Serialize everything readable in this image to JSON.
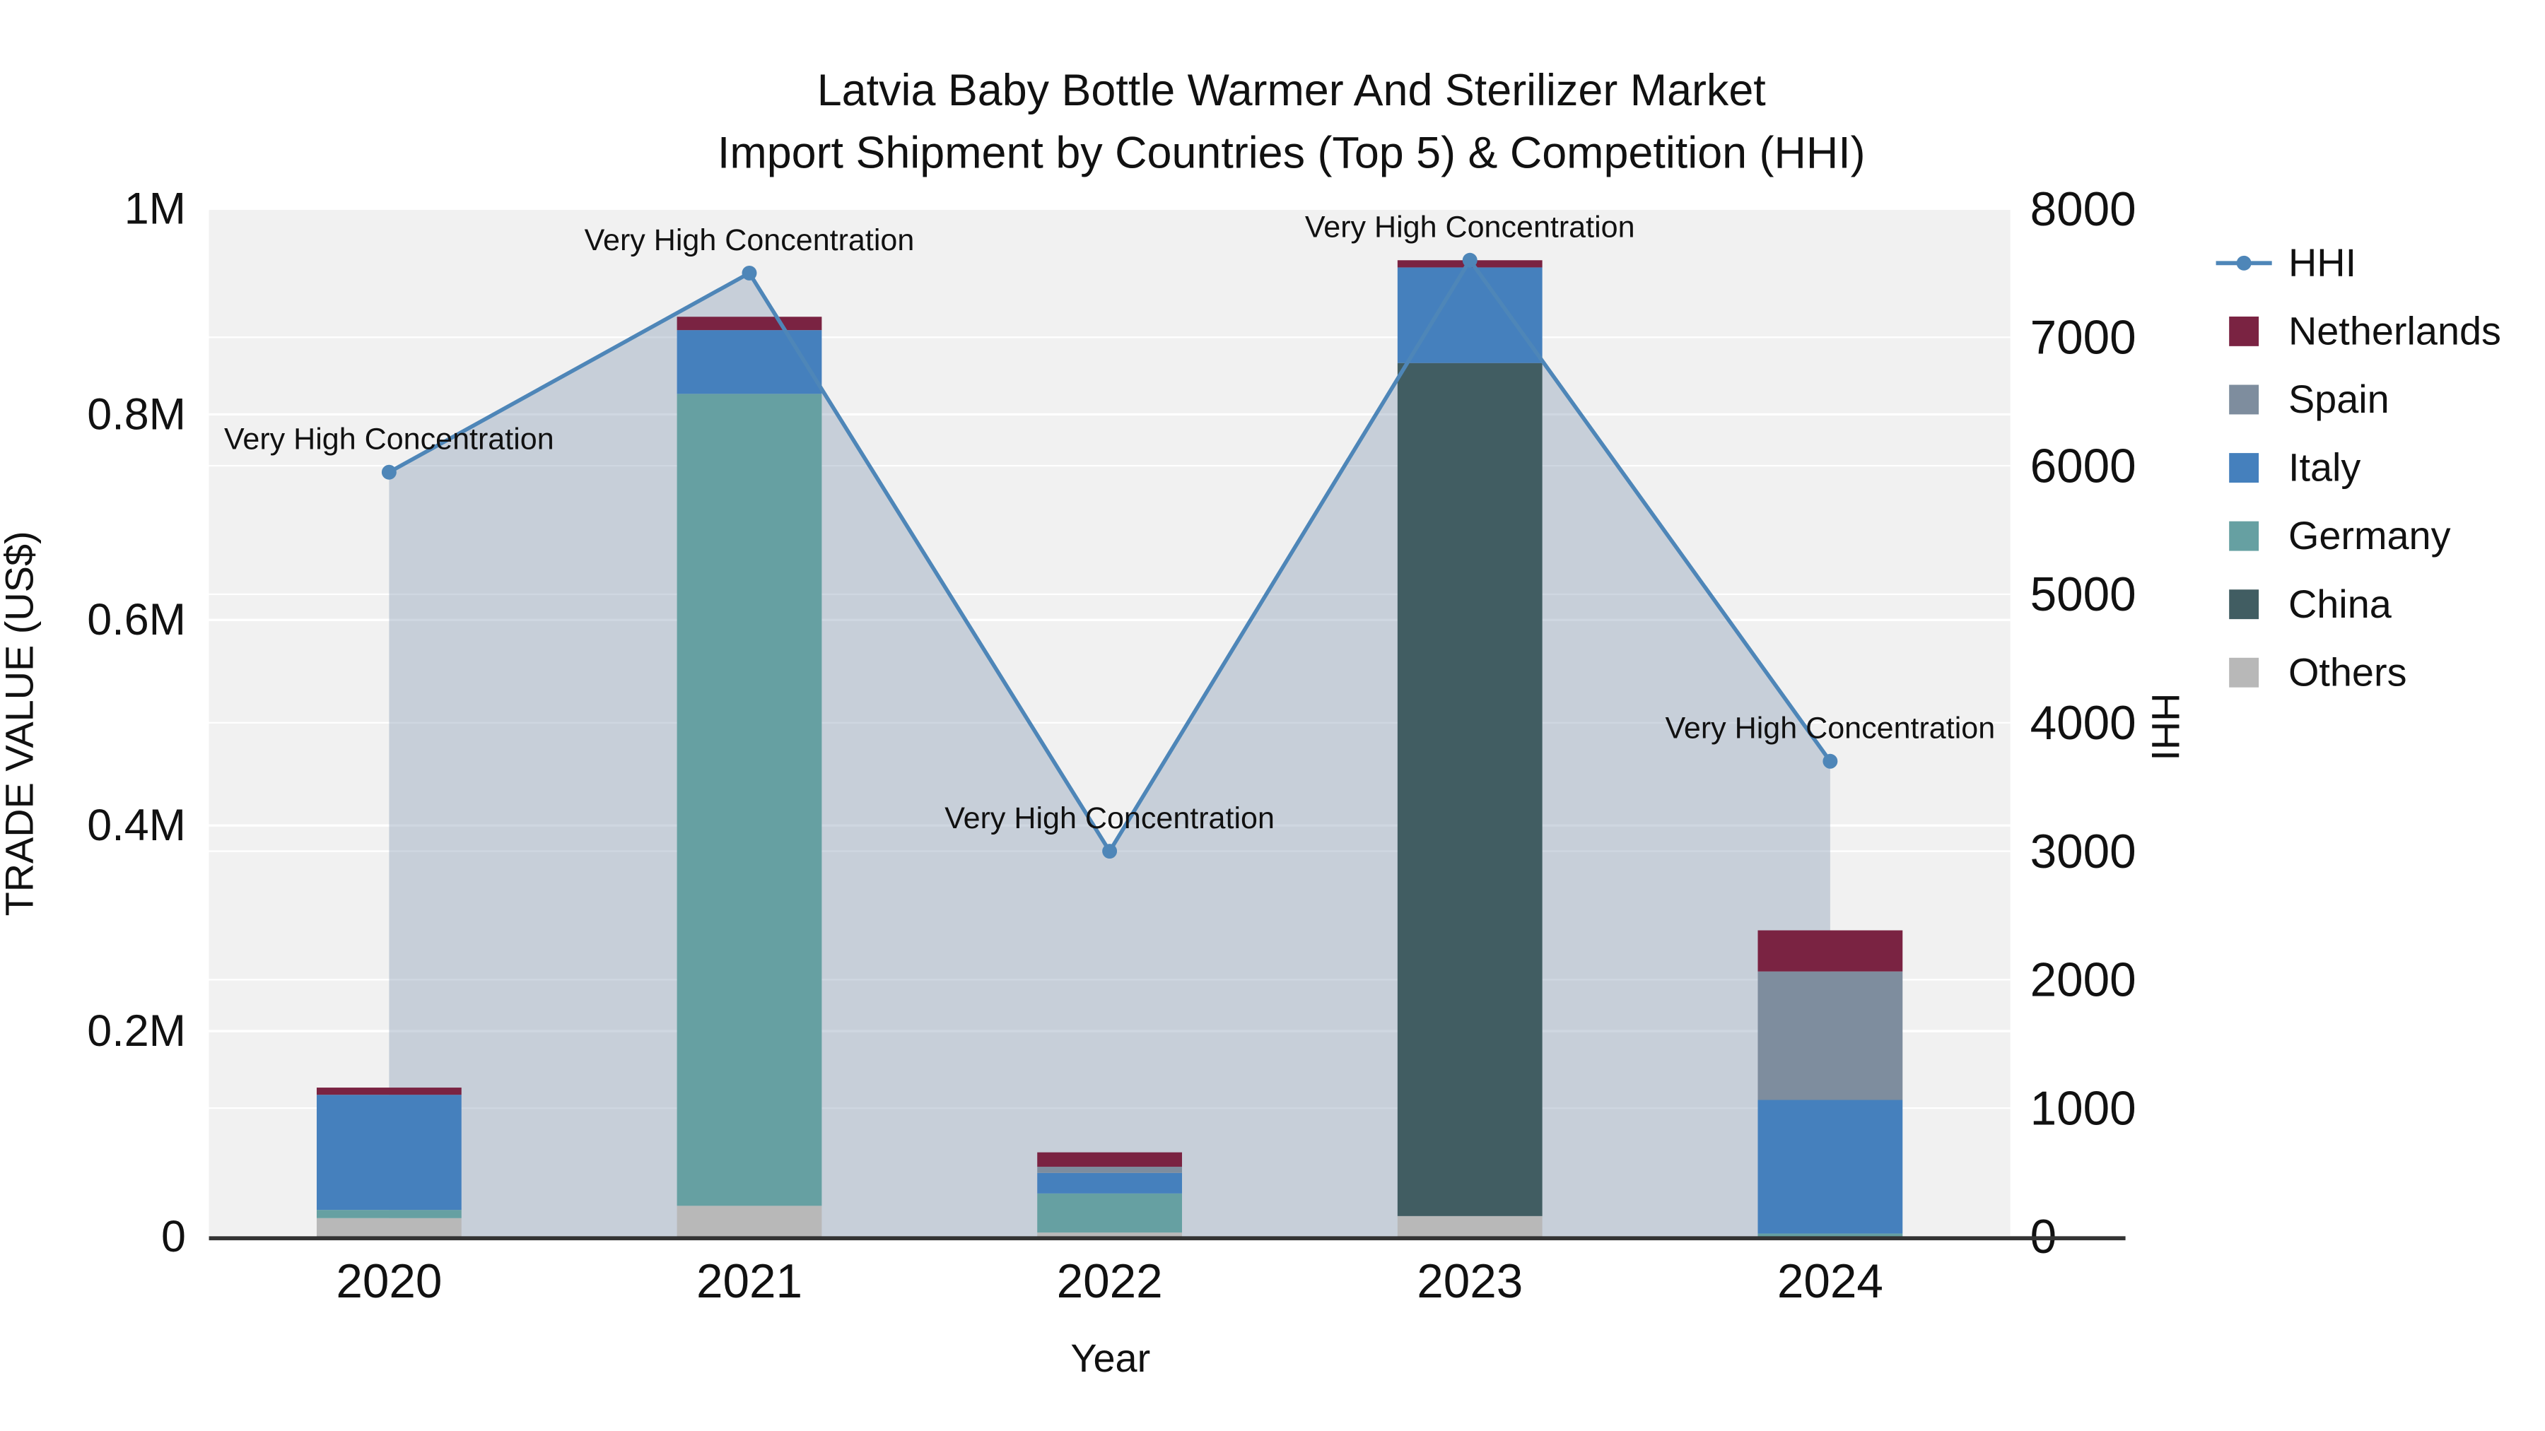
{
  "title": {
    "line1": "Latvia Baby Bottle Warmer And Sterilizer Market",
    "line2": "Import Shipment by Countries (Top 5) & Competition (HHI)"
  },
  "axes": {
    "x_title": "Year",
    "left_title": "TRADE VALUE (US$)",
    "right_title": "HHI",
    "left_ticks": [
      {
        "label": "0",
        "value": 0
      },
      {
        "label": "0.2M",
        "value": 200000
      },
      {
        "label": "0.4M",
        "value": 400000
      },
      {
        "label": "0.6M",
        "value": 600000
      },
      {
        "label": "0.8M",
        "value": 800000
      },
      {
        "label": "1M",
        "value": 1000000
      }
    ],
    "right_ticks": [
      {
        "label": "0",
        "value": 0
      },
      {
        "label": "1000",
        "value": 1000
      },
      {
        "label": "2000",
        "value": 2000
      },
      {
        "label": "3000",
        "value": 3000
      },
      {
        "label": "4000",
        "value": 4000
      },
      {
        "label": "5000",
        "value": 5000
      },
      {
        "label": "6000",
        "value": 6000
      },
      {
        "label": "7000",
        "value": 7000
      },
      {
        "label": "8000",
        "value": 8000
      }
    ]
  },
  "chart_data": {
    "type": "bar",
    "subtype": "stacked-bars-with-line-area",
    "categories": [
      "2020",
      "2021",
      "2022",
      "2023",
      "2024"
    ],
    "ylim_left": [
      0,
      1000000
    ],
    "ylim_right": [
      0,
      8000
    ],
    "stack_series": [
      {
        "name": "Others",
        "color": "#b8b8b8",
        "values": [
          18000,
          30000,
          4000,
          20000,
          0
        ]
      },
      {
        "name": "China",
        "color": "#415d62",
        "values": [
          0,
          0,
          0,
          830000,
          0
        ]
      },
      {
        "name": "Germany",
        "color": "#66a0a2",
        "values": [
          8000,
          790000,
          38000,
          0,
          3000
        ]
      },
      {
        "name": "Italy",
        "color": "#4580bd",
        "values": [
          112000,
          62000,
          20000,
          93000,
          130000
        ]
      },
      {
        "name": "Spain",
        "color": "#7e8d9e",
        "values": [
          0,
          0,
          6000,
          0,
          125000
        ]
      },
      {
        "name": "Netherlands",
        "color": "#7a2342",
        "values": [
          7000,
          13000,
          14000,
          7000,
          40000
        ]
      }
    ],
    "line_series": {
      "name": "HHI",
      "axis": "right",
      "color": "#4e86b8",
      "area_fill": "rgba(141,160,184,0.42)",
      "values": [
        5950,
        7500,
        3000,
        7600,
        3700
      ]
    },
    "annotations": [
      "Very High Concentration",
      "Very High Concentration",
      "Very High Concentration",
      "Very High Concentration",
      "Very High Concentration"
    ]
  },
  "legend": {
    "items": [
      {
        "label": "HHI",
        "type": "line",
        "color": "#4e86b8"
      },
      {
        "label": "Netherlands",
        "type": "swatch",
        "color": "#7a2342"
      },
      {
        "label": "Spain",
        "type": "swatch",
        "color": "#7e8d9e"
      },
      {
        "label": "Italy",
        "type": "swatch",
        "color": "#4580bd"
      },
      {
        "label": "Germany",
        "type": "swatch",
        "color": "#66a0a2"
      },
      {
        "label": "China",
        "type": "swatch",
        "color": "#415d62"
      },
      {
        "label": "Others",
        "type": "swatch",
        "color": "#b8b8b8"
      }
    ]
  },
  "style": {
    "plot_bg": "#f1f1f1",
    "grid": "#ffffff",
    "axis_line": "#333333",
    "text": "#111111"
  }
}
